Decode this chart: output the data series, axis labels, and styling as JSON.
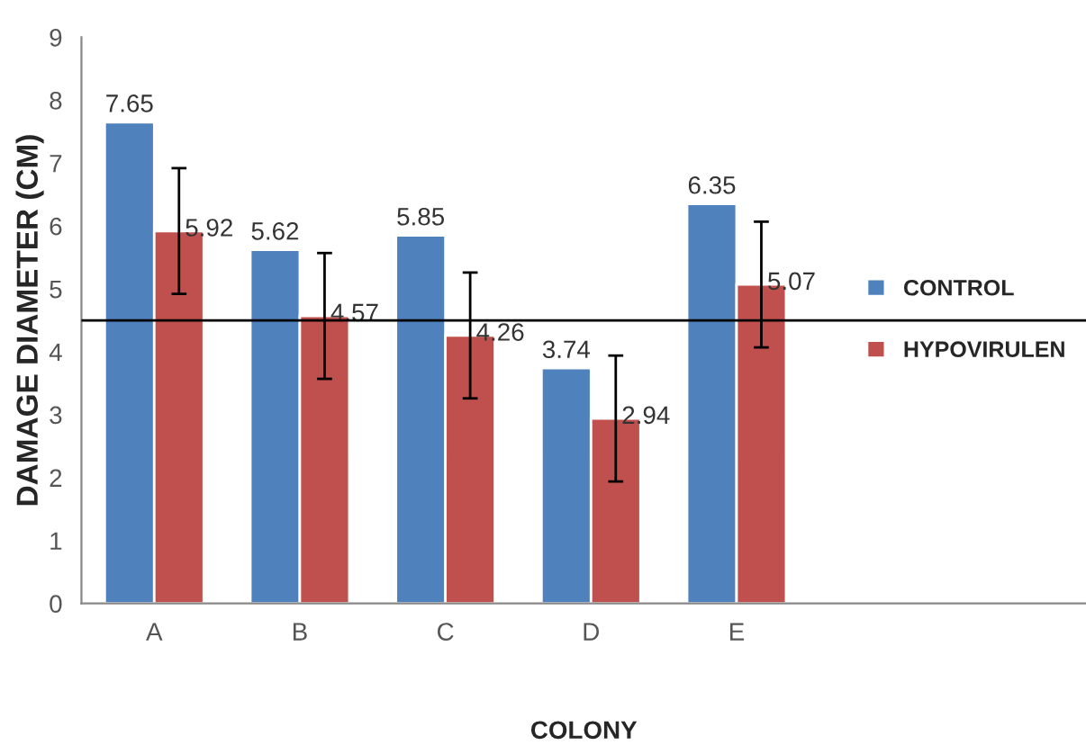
{
  "chart_data": {
    "type": "bar",
    "xlabel": "COLONY",
    "ylabel": "DAMAGE DIAMETER (CM)",
    "categories": [
      "A",
      "B",
      "C",
      "D",
      "E"
    ],
    "series": [
      {
        "name": "CONTROL",
        "color": "#4f81bd",
        "values": [
          7.65,
          5.62,
          5.85,
          3.74,
          6.35
        ]
      },
      {
        "name": "HYPOVIRULEN",
        "color": "#c0504d",
        "values": [
          5.92,
          4.57,
          4.26,
          2.94,
          5.07
        ],
        "errors": [
          1,
          1,
          1,
          1,
          1
        ]
      }
    ],
    "ylim": [
      0,
      9
    ],
    "yticks": [
      0,
      1,
      2,
      3,
      4,
      5,
      6,
      7,
      8,
      9
    ],
    "ref_lines": [
      {
        "axis": "y",
        "value": 4.5,
        "color": "#000000"
      }
    ],
    "data_labels": true,
    "grid": false,
    "legend": "right"
  }
}
